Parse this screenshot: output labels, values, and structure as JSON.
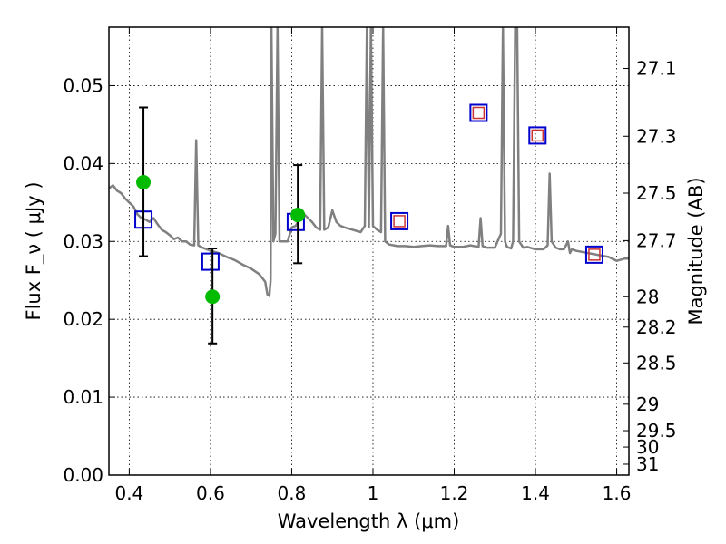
{
  "chart_data": {
    "type": "line",
    "xlabel": "Wavelength  λ (μm)",
    "ylabel": "Flux  F_ν  ( μJy )",
    "ylabel_right": "Magnitude (AB)",
    "xlim": [
      0.35,
      1.63
    ],
    "ylim": [
      0.0,
      0.0575
    ],
    "grid": true,
    "x_ticks": [
      0.4,
      0.6,
      0.8,
      1.0,
      1.2,
      1.4,
      1.6
    ],
    "x_tick_labels": [
      "0.4",
      "0.6",
      "0.8",
      "1",
      "1.2",
      "1.4",
      "1.6"
    ],
    "y_ticks": [
      0.0,
      0.01,
      0.02,
      0.03,
      0.04,
      0.05
    ],
    "y_tick_labels": [
      "0.00",
      "0.01",
      "0.02",
      "0.03",
      "0.04",
      "0.05"
    ],
    "right_ticks": [
      {
        "label": "27.1",
        "flux": 0.0522
      },
      {
        "label": "27.3",
        "flux": 0.0435
      },
      {
        "label": "27.5",
        "flux": 0.0362
      },
      {
        "label": "27.7",
        "flux": 0.0301
      },
      {
        "label": "28",
        "flux": 0.0229
      },
      {
        "label": "28.2",
        "flux": 0.019
      },
      {
        "label": "28.5",
        "flux": 0.0144
      },
      {
        "label": "29",
        "flux": 0.0091
      },
      {
        "label": "29.5",
        "flux": 0.0057
      },
      {
        "label": "30",
        "flux": 0.0036
      },
      {
        "label": "31",
        "flux": 0.0014
      }
    ],
    "series": [
      {
        "type": "line",
        "color": "#808080",
        "points": [
          [
            0.35,
            0.0368
          ],
          [
            0.36,
            0.0372
          ],
          [
            0.37,
            0.0365
          ],
          [
            0.38,
            0.0362
          ],
          [
            0.39,
            0.0355
          ],
          [
            0.4,
            0.035
          ],
          [
            0.41,
            0.0345
          ],
          [
            0.42,
            0.0335
          ],
          [
            0.43,
            0.033
          ],
          [
            0.44,
            0.0328
          ],
          [
            0.45,
            0.0325
          ],
          [
            0.46,
            0.033
          ],
          [
            0.47,
            0.0322
          ],
          [
            0.48,
            0.0315
          ],
          [
            0.49,
            0.0312
          ],
          [
            0.5,
            0.0308
          ],
          [
            0.51,
            0.0303
          ],
          [
            0.52,
            0.0305
          ],
          [
            0.53,
            0.03
          ],
          [
            0.54,
            0.03
          ],
          [
            0.55,
            0.0296
          ],
          [
            0.56,
            0.0295
          ],
          [
            0.565,
            0.043
          ],
          [
            0.57,
            0.0295
          ],
          [
            0.58,
            0.0292
          ],
          [
            0.6,
            0.0288
          ],
          [
            0.62,
            0.0285
          ],
          [
            0.64,
            0.028
          ],
          [
            0.66,
            0.0276
          ],
          [
            0.68,
            0.027
          ],
          [
            0.7,
            0.0265
          ],
          [
            0.72,
            0.0258
          ],
          [
            0.735,
            0.0248
          ],
          [
            0.74,
            0.0232
          ],
          [
            0.745,
            0.023
          ],
          [
            0.748,
            0.025
          ],
          [
            0.75,
            0.0575
          ],
          [
            0.755,
            0.03
          ],
          [
            0.76,
            0.031
          ],
          [
            0.765,
            0.0575
          ],
          [
            0.77,
            0.03
          ],
          [
            0.78,
            0.03
          ],
          [
            0.79,
            0.03
          ],
          [
            0.8,
            0.0318
          ],
          [
            0.81,
            0.032
          ],
          [
            0.82,
            0.033
          ],
          [
            0.83,
            0.0335
          ],
          [
            0.84,
            0.033
          ],
          [
            0.85,
            0.0325
          ],
          [
            0.86,
            0.0318
          ],
          [
            0.87,
            0.0315
          ],
          [
            0.875,
            0.0575
          ],
          [
            0.88,
            0.0315
          ],
          [
            0.89,
            0.0318
          ],
          [
            0.9,
            0.034
          ],
          [
            0.91,
            0.0325
          ],
          [
            0.92,
            0.032
          ],
          [
            0.93,
            0.0318
          ],
          [
            0.95,
            0.0315
          ],
          [
            0.97,
            0.0312
          ],
          [
            0.98,
            0.032
          ],
          [
            0.985,
            0.0575
          ],
          [
            0.99,
            0.0318
          ],
          [
            0.995,
            0.0575
          ],
          [
            1.0,
            0.032
          ],
          [
            1.01,
            0.0315
          ],
          [
            1.02,
            0.0312
          ],
          [
            1.025,
            0.0575
          ],
          [
            1.03,
            0.03
          ],
          [
            1.04,
            0.0296
          ],
          [
            1.06,
            0.0294
          ],
          [
            1.08,
            0.0294
          ],
          [
            1.1,
            0.0293
          ],
          [
            1.12,
            0.0294
          ],
          [
            1.14,
            0.0295
          ],
          [
            1.16,
            0.0294
          ],
          [
            1.18,
            0.0294
          ],
          [
            1.185,
            0.032
          ],
          [
            1.19,
            0.0295
          ],
          [
            1.2,
            0.0293
          ],
          [
            1.22,
            0.0293
          ],
          [
            1.24,
            0.0295
          ],
          [
            1.26,
            0.0293
          ],
          [
            1.265,
            0.033
          ],
          [
            1.27,
            0.0294
          ],
          [
            1.28,
            0.0292
          ],
          [
            1.3,
            0.0292
          ],
          [
            1.315,
            0.031
          ],
          [
            1.32,
            0.0575
          ],
          [
            1.325,
            0.03
          ],
          [
            1.33,
            0.0293
          ],
          [
            1.34,
            0.0291
          ],
          [
            1.345,
            0.03
          ],
          [
            1.35,
            0.0575
          ],
          [
            1.355,
            0.0575
          ],
          [
            1.36,
            0.03
          ],
          [
            1.37,
            0.0292
          ],
          [
            1.38,
            0.0293
          ],
          [
            1.4,
            0.029
          ],
          [
            1.42,
            0.029
          ],
          [
            1.43,
            0.0295
          ],
          [
            1.435,
            0.0387
          ],
          [
            1.44,
            0.03
          ],
          [
            1.45,
            0.0292
          ],
          [
            1.46,
            0.029
          ],
          [
            1.47,
            0.029
          ],
          [
            1.48,
            0.03
          ],
          [
            1.485,
            0.0285
          ],
          [
            1.49,
            0.029
          ],
          [
            1.5,
            0.0288
          ],
          [
            1.52,
            0.0286
          ],
          [
            1.54,
            0.0284
          ],
          [
            1.56,
            0.0282
          ],
          [
            1.58,
            0.028
          ],
          [
            1.6,
            0.0275
          ],
          [
            1.62,
            0.0278
          ],
          [
            1.63,
            0.0278
          ]
        ]
      },
      {
        "type": "blue_squares",
        "color": "#0000cc",
        "points": [
          [
            0.435,
            0.0328
          ],
          [
            0.6,
            0.0274
          ],
          [
            0.81,
            0.0325
          ],
          [
            1.065,
            0.0326
          ],
          [
            1.26,
            0.0465
          ],
          [
            1.405,
            0.0436
          ],
          [
            1.545,
            0.0283
          ]
        ]
      },
      {
        "type": "red_squares",
        "color": "#cc3333",
        "points": [
          [
            1.065,
            0.0326
          ],
          [
            1.26,
            0.0465
          ],
          [
            1.405,
            0.0436
          ],
          [
            1.545,
            0.0283
          ]
        ]
      },
      {
        "type": "green_points",
        "color": "#00bb00",
        "points": [
          {
            "x": 0.435,
            "y": 0.0376,
            "yerr_low": 0.0281,
            "yerr_high": 0.0472
          },
          {
            "x": 0.605,
            "y": 0.0229,
            "yerr_low": 0.0169,
            "yerr_high": 0.0291
          },
          {
            "x": 0.815,
            "y": 0.0334,
            "yerr_low": 0.0272,
            "yerr_high": 0.0398
          }
        ]
      }
    ]
  }
}
